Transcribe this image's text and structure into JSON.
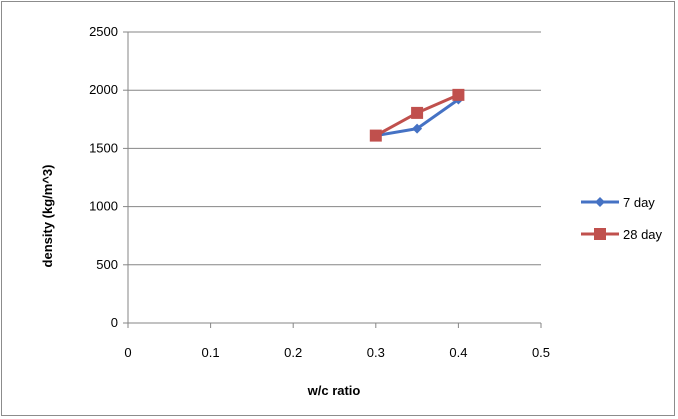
{
  "chart_data": {
    "type": "scatter",
    "title": "",
    "xlabel": "w/c ratio",
    "ylabel": "density (kg/m^3)",
    "xlim": [
      0,
      0.5
    ],
    "ylim": [
      0,
      2500
    ],
    "x_ticks": [
      "0",
      "0.1",
      "0.2",
      "0.3",
      "0.4",
      "0.5"
    ],
    "y_ticks": [
      "0",
      "500",
      "1000",
      "1500",
      "2000",
      "2500"
    ],
    "grid": "horizontal",
    "legend_position": "right",
    "series": [
      {
        "name": "7 day",
        "color": "#4572c4",
        "marker": "diamond",
        "x": [
          0.3,
          0.35,
          0.4
        ],
        "y": [
          1610,
          1670,
          1920
        ]
      },
      {
        "name": "28 day",
        "color": "#c0504d",
        "marker": "square",
        "x": [
          0.3,
          0.35,
          0.4
        ],
        "y": [
          1610,
          1805,
          1960
        ]
      }
    ]
  }
}
